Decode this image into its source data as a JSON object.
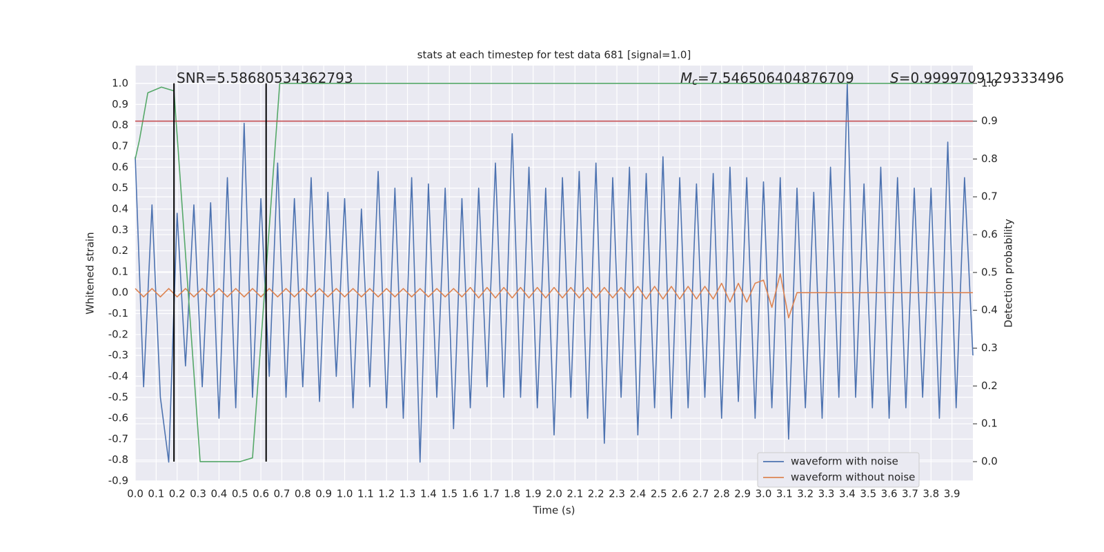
{
  "chart_data": {
    "type": "line",
    "title": "stats at each timestep for test data 681 [signal=1.0]",
    "xlabel": "Time (s)",
    "ylabel": "Whitened strain",
    "y2label": "Detection probability",
    "annotations": [
      {
        "text": "SNR=5.58680534362793"
      },
      {
        "symbol": "M",
        "subscript": "c",
        "text": "=7.546506404876709"
      },
      {
        "symbol": "S",
        "text": "=0.9999709129333496"
      }
    ],
    "xlim": [
      0,
      4.0
    ],
    "ylim": [
      -0.9,
      1.086
    ],
    "y2lim": [
      -0.051,
      1.047
    ],
    "xticks": [
      {
        "value": 0,
        "label": "0.0"
      },
      0.1,
      0.2,
      0.3,
      0.4,
      0.5,
      0.6,
      0.7,
      0.8,
      0.9,
      {
        "value": 1,
        "label": "1.0"
      },
      1.1,
      1.2,
      1.3,
      1.4,
      1.5,
      1.6,
      1.7,
      1.8,
      1.9,
      {
        "value": 2,
        "label": "2.0"
      },
      2.1,
      2.2,
      2.3,
      2.4,
      2.5,
      2.6,
      2.7,
      2.8,
      2.9,
      {
        "value": 3,
        "label": "3.0"
      },
      3.1,
      3.2,
      3.3,
      3.4,
      3.5,
      3.6,
      3.7,
      3.8,
      3.9
    ],
    "yticks": [
      -0.9,
      -0.8,
      -0.7,
      -0.6,
      -0.5,
      -0.4,
      -0.3,
      -0.2,
      -0.1,
      {
        "value": 0,
        "label": "0.0"
      },
      0.1,
      0.2,
      0.3,
      0.4,
      0.5,
      0.6,
      0.7,
      0.8,
      0.9,
      {
        "value": 1,
        "label": "1.0"
      }
    ],
    "y2ticks": [
      {
        "value": 0,
        "label": "0.0"
      },
      0.1,
      0.2,
      0.3,
      0.4,
      0.5,
      0.6,
      0.7,
      0.8,
      0.9,
      {
        "value": 1,
        "label": "1.0"
      }
    ],
    "grid": true,
    "legend": "lower right",
    "x": [
      0,
      0.04,
      0.08,
      0.12,
      0.16,
      0.2,
      0.24,
      0.28,
      0.32,
      0.36,
      0.4,
      0.44,
      0.48,
      0.52,
      0.56,
      0.6,
      0.64,
      0.68,
      0.72,
      0.76,
      0.8,
      0.84,
      0.88,
      0.92,
      0.96,
      1,
      1.04,
      1.08,
      1.12,
      1.16,
      1.2,
      1.24,
      1.28,
      1.32,
      1.36,
      1.4,
      1.44,
      1.48,
      1.52,
      1.56,
      1.6,
      1.64,
      1.68,
      1.72,
      1.76,
      1.8,
      1.84,
      1.88,
      1.92,
      1.96,
      2,
      2.04,
      2.08,
      2.12,
      2.16,
      2.2,
      2.24,
      2.28,
      2.32,
      2.36,
      2.4,
      2.44,
      2.48,
      2.52,
      2.56,
      2.6,
      2.64,
      2.68,
      2.72,
      2.76,
      2.8,
      2.84,
      2.88,
      2.92,
      2.96,
      3,
      3.04,
      3.08,
      3.12,
      3.16,
      3.2,
      3.24,
      3.28,
      3.32,
      3.36,
      3.4,
      3.44,
      3.48,
      3.52,
      3.56,
      3.6,
      3.64,
      3.68,
      3.72,
      3.76,
      3.8,
      3.84,
      3.88,
      3.92,
      3.96,
      4
    ],
    "series": [
      {
        "name": "waveform with noise",
        "color": "#4c72b0",
        "values": [
          0.65,
          -0.45,
          0.42,
          -0.5,
          -0.81,
          0.38,
          -0.35,
          0.42,
          -0.45,
          0.43,
          -0.6,
          0.55,
          -0.55,
          0.81,
          -0.5,
          0.45,
          -0.4,
          0.62,
          -0.5,
          0.45,
          -0.45,
          0.55,
          -0.52,
          0.48,
          -0.4,
          0.45,
          -0.55,
          0.4,
          -0.45,
          0.58,
          -0.55,
          0.5,
          -0.6,
          0.55,
          -0.81,
          0.52,
          -0.5,
          0.5,
          -0.65,
          0.45,
          -0.55,
          0.5,
          -0.45,
          0.62,
          -0.5,
          0.76,
          -0.5,
          0.6,
          -0.55,
          0.5,
          -0.68,
          0.55,
          -0.5,
          0.58,
          -0.6,
          0.62,
          -0.72,
          0.55,
          -0.5,
          0.6,
          -0.68,
          0.57,
          -0.55,
          0.65,
          -0.6,
          0.55,
          -0.55,
          0.52,
          -0.5,
          0.57,
          -0.6,
          0.6,
          -0.52,
          0.55,
          -0.6,
          0.53,
          -0.55,
          0.55,
          -0.7,
          0.5,
          -0.55,
          0.48,
          -0.6,
          0.6,
          -0.5,
          1.0,
          -0.5,
          0.52,
          -0.55,
          0.6,
          -0.6,
          0.55,
          -0.55,
          0.5,
          -0.5,
          0.5,
          -0.6,
          0.72,
          -0.55,
          0.55,
          -0.3
        ]
      },
      {
        "name": "waveform without noise",
        "color": "#dd8452",
        "values": [
          0.02,
          -0.02,
          0.02,
          -0.02,
          0.02,
          -0.02,
          0.02,
          -0.02,
          0.02,
          -0.02,
          0.02,
          -0.02,
          0.02,
          -0.02,
          0.02,
          -0.02,
          0.02,
          -0.02,
          0.02,
          -0.02,
          0.02,
          -0.02,
          0.02,
          -0.02,
          0.02,
          -0.02,
          0.02,
          -0.02,
          0.02,
          -0.02,
          0.02,
          -0.02,
          0.02,
          -0.02,
          0.02,
          -0.02,
          0.02,
          -0.02,
          0.02,
          -0.02,
          0.025,
          -0.025,
          0.025,
          -0.025,
          0.025,
          -0.025,
          0.025,
          -0.025,
          0.025,
          -0.025,
          0.025,
          -0.025,
          0.025,
          -0.025,
          0.025,
          -0.025,
          0.025,
          -0.025,
          0.025,
          -0.025,
          0.03,
          -0.03,
          0.03,
          -0.03,
          0.03,
          -0.03,
          0.03,
          -0.03,
          0.03,
          -0.03,
          0.045,
          -0.045,
          0.045,
          -0.045,
          0.045,
          0.06,
          -0.07,
          0.09,
          -0.12,
          0,
          0,
          0,
          0,
          0,
          0,
          0,
          0,
          0,
          0,
          0,
          0,
          0,
          0,
          0,
          0,
          0,
          0,
          0,
          0,
          0,
          0
        ]
      },
      {
        "color": "#55a868",
        "axis": "y2",
        "x": [
          0,
          0.02,
          0.06,
          0.125,
          0.185,
          0.31,
          0.5,
          0.56,
          0.69,
          4.0
        ],
        "values": [
          0.8,
          0.85,
          0.975,
          0.99,
          0.98,
          0,
          0,
          0.01,
          1.0,
          1.0
        ]
      }
    ],
    "threshold": {
      "value": 0.9,
      "axis": "y2",
      "color": "#c44e52"
    },
    "vlines": {
      "x": [
        0.185,
        0.625
      ],
      "y2range": [
        0,
        1
      ],
      "color": "#000000"
    }
  }
}
